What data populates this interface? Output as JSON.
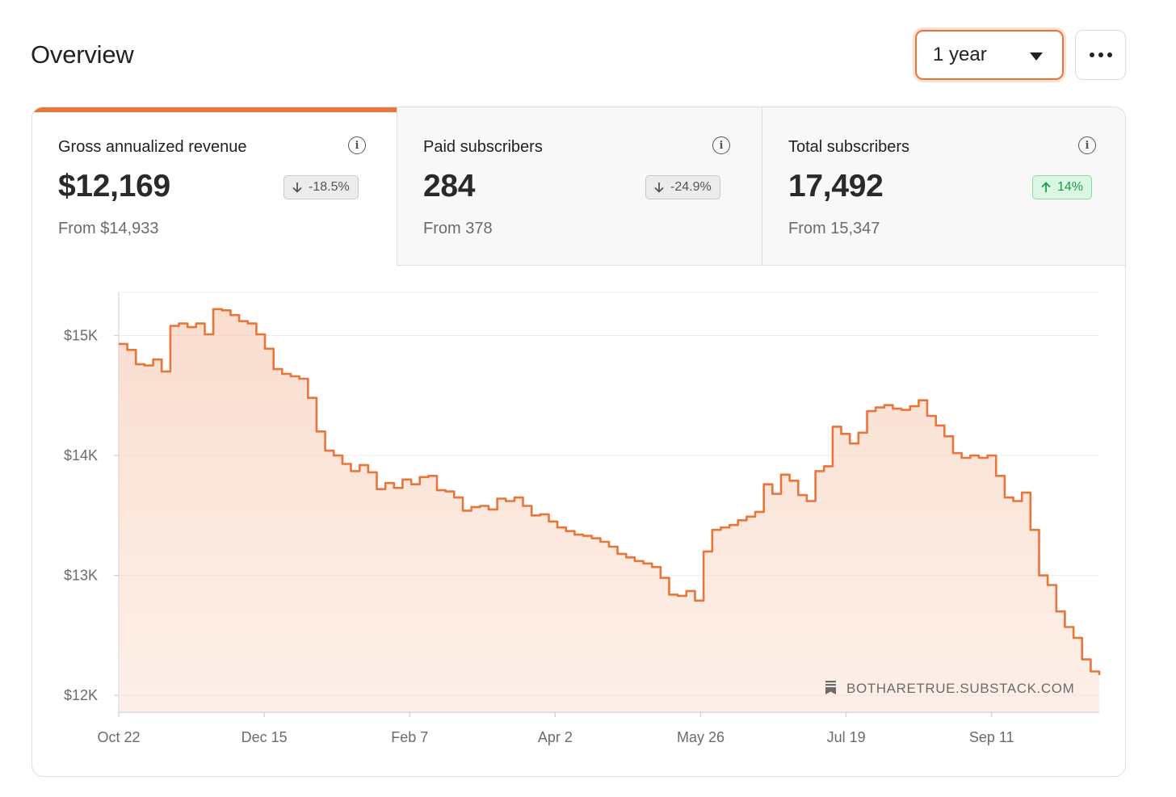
{
  "header": {
    "title": "Overview",
    "range_value": "1 year"
  },
  "metrics": [
    {
      "label": "Gross annualized revenue",
      "value": "$12,169",
      "change": "-18.5%",
      "direction": "down",
      "from": "From $14,933"
    },
    {
      "label": "Paid subscribers",
      "value": "284",
      "change": "-24.9%",
      "direction": "down",
      "from": "From 378"
    },
    {
      "label": "Total subscribers",
      "value": "17,492",
      "change": "14%",
      "direction": "up",
      "from": "From 15,347"
    }
  ],
  "icons": {
    "info": "info-circle-icon",
    "down": "arrow-down-icon",
    "up": "arrow-up-icon",
    "more": "ellipsis-icon",
    "dropdown": "caret-down-icon",
    "watermark": "substack-logo-icon"
  },
  "colors": {
    "accent": "#e8763a",
    "fill": "#fadbcc",
    "up": "#1f9a4d",
    "up_bg": "#d9f7e3",
    "down_bg": "#ececec"
  },
  "watermark": "BOTHARETRUE.SUBSTACK.COM",
  "chart_data": {
    "type": "area",
    "series": [
      {
        "values": [
          14930,
          14880,
          14760,
          14750,
          14800,
          14700,
          15080,
          15100,
          15070,
          15100,
          15010,
          15220,
          15210,
          15170,
          15120,
          15100,
          15010,
          14890,
          14720,
          14680,
          14660,
          14640,
          14480,
          14200,
          14040,
          14000,
          13930,
          13870,
          13920,
          13860,
          13720,
          13770,
          13730,
          13800,
          13760,
          13820,
          13830,
          13710,
          13700,
          13650,
          13540,
          13570,
          13580,
          13550,
          13640,
          13620,
          13650,
          13580,
          13500,
          13510,
          13450,
          13400,
          13370,
          13340,
          13330,
          13310,
          13280,
          13240,
          13180,
          13150,
          13120,
          13100,
          13070,
          12980,
          12840,
          12830,
          12870,
          12790,
          13200,
          13380,
          13400,
          13420,
          13460,
          13490,
          13530,
          13760,
          13680,
          13840,
          13790,
          13670,
          13620,
          13870,
          13910,
          14240,
          14180,
          14100,
          14190,
          14370,
          14400,
          14420,
          14390,
          14380,
          14410,
          14460,
          14330,
          14250,
          14160,
          14020,
          13980,
          14000,
          13980,
          14000,
          13830,
          13650,
          13620,
          13690,
          13380,
          13000,
          12920,
          12700,
          12570,
          12480,
          12300,
          12200,
          12170
        ]
      }
    ],
    "x_ticks": [
      "Oct 22",
      "Dec 15",
      "Feb 7",
      "Apr 2",
      "May 26",
      "Jul 19",
      "Sep 11"
    ],
    "y_ticks": [
      "$12K",
      "$13K",
      "$14K",
      "$15K"
    ],
    "y_range": [
      11860,
      15360
    ],
    "grid": true
  }
}
